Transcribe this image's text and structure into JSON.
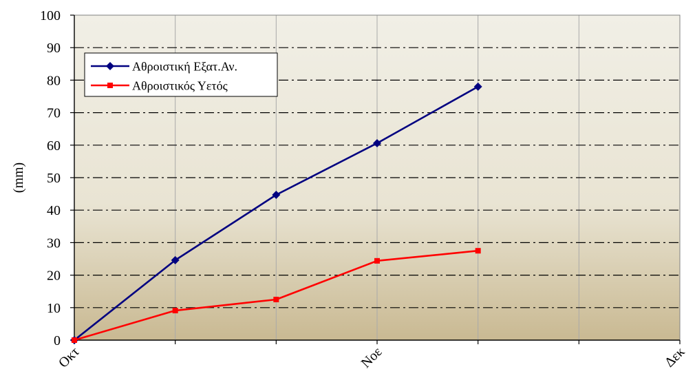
{
  "chart_data": {
    "type": "line",
    "ylabel": "(mm)",
    "categories": [
      "Οκτ",
      "",
      "",
      "Νοε",
      "",
      "",
      "Δεκ"
    ],
    "ylim": [
      0,
      100
    ],
    "yticks": [
      0,
      10,
      20,
      30,
      40,
      50,
      60,
      70,
      80,
      90,
      100
    ],
    "grid": {
      "horizontal": true,
      "vertical": true
    },
    "legend": "top-left",
    "series": [
      {
        "name": "Αθροιστική Εξατ.Αν.",
        "color": "#000080",
        "marker": "diamond",
        "values": [
          0,
          24.6,
          44.7,
          60.6,
          78.0,
          null,
          null
        ]
      },
      {
        "name": "Αθροιστικός Υετός",
        "color": "#ff0000",
        "marker": "square",
        "values": [
          0,
          9.1,
          12.5,
          24.4,
          27.5,
          null,
          null
        ]
      }
    ]
  }
}
